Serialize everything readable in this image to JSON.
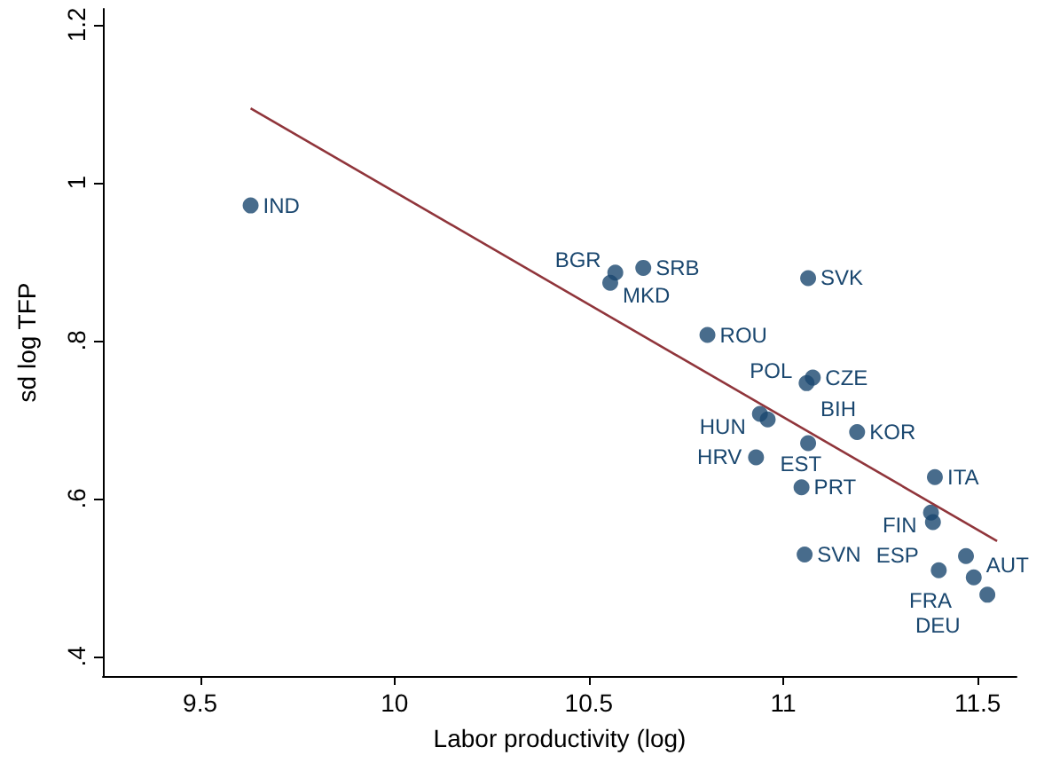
{
  "chart_data": {
    "type": "scatter",
    "xlabel": "Labor productivity (log)",
    "ylabel": "sd log TFP",
    "xlim": [
      9.25,
      11.6
    ],
    "xticks": [
      9.5,
      10,
      10.5,
      11,
      11.5
    ],
    "ylim": [
      0.375,
      1.22
    ],
    "yticks": [
      {
        "value": 0.4,
        "label": ".4"
      },
      {
        "value": 0.6,
        "label": ".6"
      },
      {
        "value": 0.8,
        "label": ".8"
      },
      {
        "value": 1,
        "label": "1"
      },
      {
        "value": 1.2,
        "label": "1.2"
      }
    ],
    "grid": false,
    "marker": "circle",
    "series": [
      {
        "color": "#1a476f",
        "x": [
          9.63,
          10.568,
          10.64,
          10.555,
          11.064,
          10.805,
          11.076,
          11.06,
          10.94,
          10.96,
          11.064,
          11.19,
          10.93,
          11.047,
          11.055,
          11.39,
          11.38,
          11.385,
          11.47,
          11.4,
          11.49,
          11.525
        ],
        "values": [
          0.971,
          0.886,
          0.892,
          0.873,
          0.879,
          0.807,
          0.753,
          0.746,
          0.707,
          0.7,
          0.67,
          0.684,
          0.652,
          0.614,
          0.529,
          0.627,
          0.582,
          0.57,
          0.527,
          0.509,
          0.5,
          0.478
        ]
      },
      {
        "type": "line",
        "marker": "none",
        "color": "#90353b",
        "x": [
          9.63,
          11.55
        ],
        "values": [
          1.094,
          0.546
        ]
      }
    ],
    "annotations": [
      {
        "text": "IND",
        "x": 9.63,
        "y": 0.971
      },
      {
        "text": "BGR",
        "x": 10.568,
        "y": 0.886
      },
      {
        "text": "SRB",
        "x": 10.64,
        "y": 0.892
      },
      {
        "text": "MKD",
        "x": 10.555,
        "y": 0.873
      },
      {
        "text": "SVK",
        "x": 11.064,
        "y": 0.879
      },
      {
        "text": "ROU",
        "x": 10.805,
        "y": 0.807
      },
      {
        "text": "CZE",
        "x": 11.076,
        "y": 0.753
      },
      {
        "text": "POL",
        "x": 11.06,
        "y": 0.746
      },
      {
        "text": "HUN",
        "x": 10.94,
        "y": 0.707
      },
      {
        "text": "EST",
        "x": 10.96,
        "y": 0.7
      },
      {
        "text": "BIH",
        "x": 11.064,
        "y": 0.67
      },
      {
        "text": "KOR",
        "x": 11.19,
        "y": 0.684
      },
      {
        "text": "HRV",
        "x": 10.93,
        "y": 0.652
      },
      {
        "text": "PRT",
        "x": 11.047,
        "y": 0.614
      },
      {
        "text": "SVN",
        "x": 11.055,
        "y": 0.529
      },
      {
        "text": "ITA",
        "x": 11.39,
        "y": 0.627
      },
      {
        "text": "FIN",
        "x": 11.38,
        "y": 0.582
      },
      {
        "text": "ESP",
        "x": 11.385,
        "y": 0.57
      },
      {
        "text": "FRA",
        "x": 11.47,
        "y": 0.527
      },
      {
        "text": "DEU",
        "x": 11.4,
        "y": 0.509
      },
      {
        "text": "AUT",
        "x": 11.49,
        "y": 0.5
      }
    ]
  }
}
